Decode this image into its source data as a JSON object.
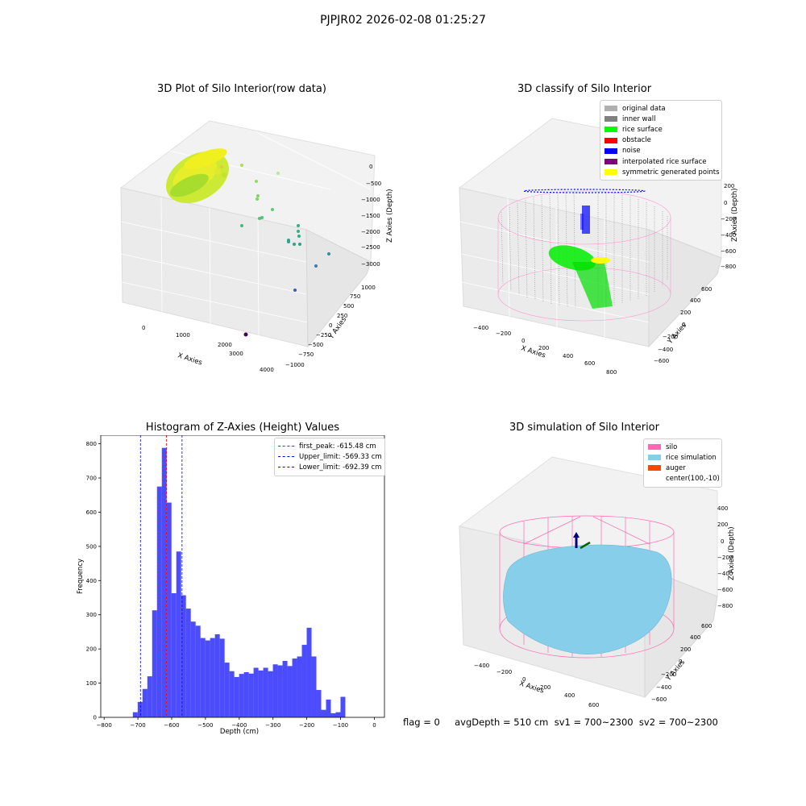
{
  "figure": {
    "suptitle": "PJPJR02 2026-02-08 01:25:27",
    "status_text": "flag = 0     avgDepth = 510 cm  sv1 = 700~2300  sv2 = 700~2300"
  },
  "panels": {
    "raw": {
      "title": "3D Plot of Silo Interior(row data)",
      "xlabel": "X Axies",
      "ylabel": "Y Axies",
      "zlabel": "Z Axies (Depth)",
      "xticks": [
        "0",
        "1000",
        "2000",
        "3000",
        "4000"
      ],
      "yticks": [
        "−1000",
        "−750",
        "−500",
        "−250",
        "0",
        "250",
        "500",
        "750",
        "1000"
      ],
      "zticks": [
        "0",
        "−500",
        "−1000",
        "−1500",
        "−2000",
        "−2500",
        "−3000"
      ]
    },
    "classify": {
      "title": "3D classify of Silo Interior",
      "xlabel": "X Axies",
      "ylabel": "Y Axies",
      "zlabel": "Z Axies (Depth)",
      "xticks": [
        "−400",
        "−200",
        "0",
        "200",
        "400",
        "600",
        "800"
      ],
      "yticks": [
        "−600",
        "−400",
        "−200",
        "0",
        "200",
        "400",
        "600"
      ],
      "zticks": [
        "200",
        "0",
        "−200",
        "−400",
        "−600",
        "−800"
      ],
      "legend": [
        {
          "label": "original data",
          "color": "#b0b0b0"
        },
        {
          "label": "inner wall",
          "color": "#808080"
        },
        {
          "label": "rice surface",
          "color": "#00ff00"
        },
        {
          "label": "obstacle",
          "color": "#ff0000"
        },
        {
          "label": "noise",
          "color": "#0000ff"
        },
        {
          "label": "interpolated rice surface",
          "color": "#800080"
        },
        {
          "label": "symmetric generated points",
          "color": "#ffff00"
        }
      ]
    },
    "simulation": {
      "title": "3D simulation of Silo Interior",
      "xlabel": "X Axies",
      "ylabel": "Y Axies",
      "zlabel": "Z Axies (Depth)",
      "xticks": [
        "−400",
        "−200",
        "0",
        "200",
        "400",
        "600"
      ],
      "yticks": [
        "−600",
        "−400",
        "−200",
        "0",
        "200",
        "400",
        "600"
      ],
      "zticks": [
        "400",
        "200",
        "0",
        "−200",
        "−400",
        "−600",
        "−800"
      ],
      "legend": [
        {
          "label": "silo",
          "color": "#ff69b4"
        },
        {
          "label": "rice simulation",
          "color": "#87ceeb"
        },
        {
          "label": "auger",
          "color": "#ff4500"
        },
        {
          "label": "center(100,-10)",
          "color": ""
        }
      ]
    }
  },
  "chart_data": {
    "type": "bar",
    "title": "Histogram of Z-Axies (Height) Values",
    "xlabel": "Depth (cm)",
    "ylabel": "Frequency",
    "xlim": [
      -810,
      30
    ],
    "ylim": [
      0,
      825
    ],
    "bar_color": "#0000ff",
    "bar_alpha": 0.7,
    "bin_start": -715,
    "bin_width": 14.3,
    "values": [
      15,
      45,
      83,
      120,
      313,
      675,
      788,
      628,
      363,
      485,
      357,
      318,
      280,
      268,
      232,
      225,
      232,
      243,
      230,
      160,
      135,
      118,
      127,
      132,
      128,
      145,
      137,
      145,
      135,
      155,
      152,
      165,
      150,
      172,
      178,
      212,
      262,
      178,
      80,
      22,
      52,
      12,
      15,
      60
    ],
    "xticks": [
      -800,
      -700,
      -600,
      -500,
      -400,
      -300,
      -200,
      -100,
      0
    ],
    "xtick_labels": [
      "−800",
      "−700",
      "−600",
      "−500",
      "−400",
      "−300",
      "−200",
      "−100",
      "0"
    ],
    "yticks": [
      0,
      100,
      200,
      300,
      400,
      500,
      600,
      700,
      800
    ],
    "vlines": [
      {
        "x": -615.48,
        "color": "#ff0000",
        "label": "first_peak: -615.48 cm"
      },
      {
        "x": -569.33,
        "color": "#0000ff",
        "label": "Upper_limit: -569.33 cm"
      },
      {
        "x": -692.39,
        "color": "#0000ff",
        "label": "Lower_limit: -692.39 cm"
      }
    ],
    "legend_position": "top-right"
  }
}
